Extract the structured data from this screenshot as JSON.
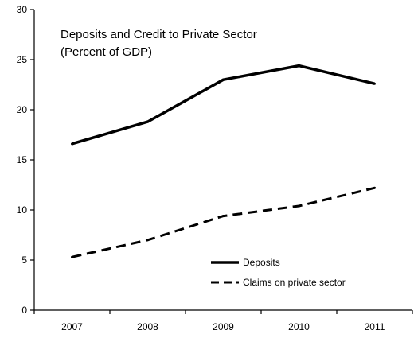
{
  "chart_data": {
    "type": "line",
    "title": "Deposits and Credit to Private Sector",
    "subtitle": "(Percent of GDP)",
    "x": [
      "2007",
      "2008",
      "2009",
      "2010",
      "2011"
    ],
    "ylim": [
      0,
      30
    ],
    "yticks": [
      0,
      5,
      10,
      15,
      20,
      25,
      30
    ],
    "grid": false,
    "legend_position": "bottom-right",
    "series": [
      {
        "name": "Deposits",
        "values": [
          16.6,
          18.8,
          23.0,
          24.4,
          22.6
        ],
        "color": "#000000",
        "style": "solid"
      },
      {
        "name": "Claims on private sector",
        "values": [
          5.3,
          7.0,
          9.4,
          10.4,
          12.2
        ],
        "color": "#000000",
        "style": "dashed"
      }
    ]
  }
}
